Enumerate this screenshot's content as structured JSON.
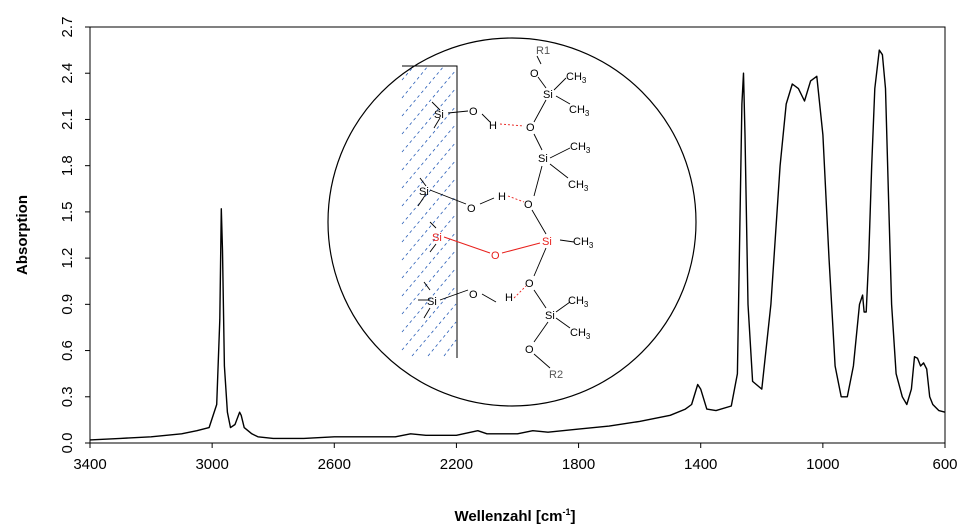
{
  "chart_data": {
    "type": "line",
    "title": "",
    "xlabel": "Wellenzahl [cm",
    "xlabel_sup": "-1",
    "xlabel_close": "]",
    "ylabel": "Absorption",
    "xlim": [
      3400,
      600
    ],
    "ylim": [
      0.0,
      2.7
    ],
    "x_reversed": true,
    "xticks": [
      3400,
      3000,
      2600,
      2200,
      1800,
      1400,
      1000,
      600
    ],
    "yticks": [
      "0.0",
      "0.3",
      "0.6",
      "0.9",
      "1.2",
      "1.5",
      "1.8",
      "2.1",
      "2.4",
      "2.7"
    ],
    "grid": false,
    "legend": "none",
    "line_color": "#000000",
    "series": [
      {
        "values": [
          [
            3400,
            0.02
          ],
          [
            3300,
            0.03
          ],
          [
            3200,
            0.04
          ],
          [
            3100,
            0.06
          ],
          [
            3050,
            0.08
          ],
          [
            3010,
            0.1
          ],
          [
            2985,
            0.25
          ],
          [
            2975,
            0.8
          ],
          [
            2970,
            1.52
          ],
          [
            2966,
            1.25
          ],
          [
            2960,
            0.5
          ],
          [
            2950,
            0.2
          ],
          [
            2940,
            0.1
          ],
          [
            2925,
            0.12
          ],
          [
            2910,
            0.2
          ],
          [
            2905,
            0.18
          ],
          [
            2895,
            0.1
          ],
          [
            2870,
            0.06
          ],
          [
            2850,
            0.04
          ],
          [
            2800,
            0.03
          ],
          [
            2700,
            0.03
          ],
          [
            2600,
            0.04
          ],
          [
            2500,
            0.04
          ],
          [
            2400,
            0.04
          ],
          [
            2350,
            0.06
          ],
          [
            2300,
            0.05
          ],
          [
            2200,
            0.05
          ],
          [
            2130,
            0.08
          ],
          [
            2100,
            0.06
          ],
          [
            2000,
            0.06
          ],
          [
            1950,
            0.08
          ],
          [
            1900,
            0.07
          ],
          [
            1800,
            0.09
          ],
          [
            1700,
            0.11
          ],
          [
            1600,
            0.14
          ],
          [
            1500,
            0.18
          ],
          [
            1450,
            0.22
          ],
          [
            1430,
            0.25
          ],
          [
            1410,
            0.38
          ],
          [
            1400,
            0.35
          ],
          [
            1380,
            0.22
          ],
          [
            1350,
            0.21
          ],
          [
            1300,
            0.24
          ],
          [
            1280,
            0.45
          ],
          [
            1265,
            2.2
          ],
          [
            1260,
            2.4
          ],
          [
            1255,
            2.0
          ],
          [
            1245,
            0.9
          ],
          [
            1230,
            0.4
          ],
          [
            1200,
            0.35
          ],
          [
            1170,
            0.9
          ],
          [
            1140,
            1.8
          ],
          [
            1120,
            2.2
          ],
          [
            1100,
            2.33
          ],
          [
            1080,
            2.3
          ],
          [
            1060,
            2.22
          ],
          [
            1040,
            2.35
          ],
          [
            1020,
            2.38
          ],
          [
            1000,
            2.0
          ],
          [
            980,
            1.2
          ],
          [
            960,
            0.5
          ],
          [
            940,
            0.3
          ],
          [
            920,
            0.3
          ],
          [
            900,
            0.5
          ],
          [
            880,
            0.9
          ],
          [
            870,
            0.96
          ],
          [
            865,
            0.85
          ],
          [
            858,
            0.85
          ],
          [
            850,
            1.2
          ],
          [
            840,
            1.8
          ],
          [
            830,
            2.3
          ],
          [
            815,
            2.55
          ],
          [
            805,
            2.52
          ],
          [
            795,
            2.3
          ],
          [
            785,
            1.6
          ],
          [
            775,
            0.9
          ],
          [
            760,
            0.45
          ],
          [
            740,
            0.3
          ],
          [
            725,
            0.25
          ],
          [
            710,
            0.35
          ],
          [
            700,
            0.56
          ],
          [
            690,
            0.55
          ],
          [
            680,
            0.5
          ],
          [
            670,
            0.52
          ],
          [
            660,
            0.48
          ],
          [
            650,
            0.3
          ],
          [
            640,
            0.25
          ],
          [
            620,
            0.21
          ],
          [
            600,
            0.2
          ]
        ]
      }
    ]
  },
  "inset": {
    "labels": {
      "r1": "R1",
      "r2": "R2",
      "ch3": "CH",
      "ch3_sub": "3",
      "si": "Si",
      "o": "O",
      "h": "H"
    },
    "colors": {
      "bond": "#000000",
      "siloxane": "#e8201c",
      "surface_hatch": "#2b5fb8",
      "hbond": "#e8201c"
    }
  }
}
